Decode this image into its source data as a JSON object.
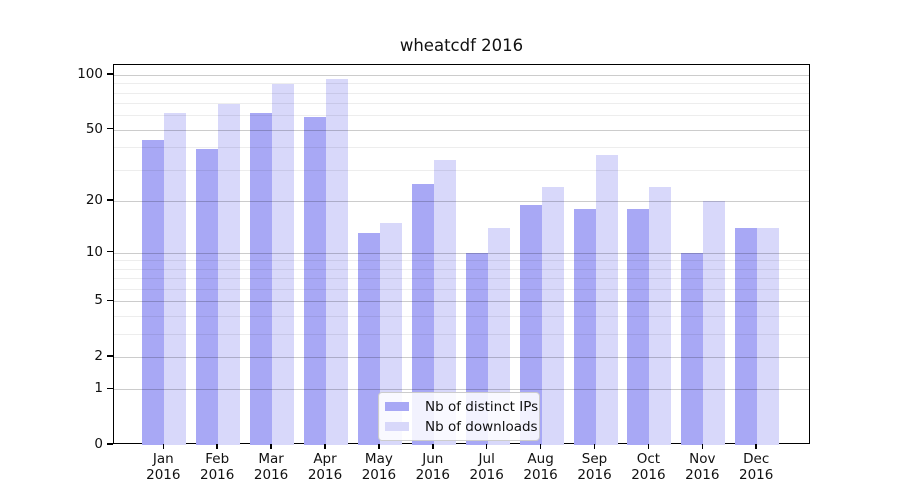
{
  "chart_data": {
    "type": "bar",
    "title": "wheatcdf 2016",
    "x_tick_months": [
      "Jan",
      "Feb",
      "Mar",
      "Apr",
      "May",
      "Jun",
      "Jul",
      "Aug",
      "Sep",
      "Oct",
      "Nov",
      "Dec"
    ],
    "x_tick_year": "2016",
    "series": [
      {
        "name": "Nb of distinct IPs",
        "color": "#a8a8f5",
        "values": [
          44,
          39,
          62,
          59,
          13,
          25,
          10,
          19,
          18,
          18,
          10,
          14
        ]
      },
      {
        "name": "Nb of downloads",
        "color": "#d8d8fa",
        "values": [
          62,
          69,
          89,
          95,
          15,
          34,
          14,
          24,
          36,
          24,
          20,
          14
        ]
      }
    ],
    "yscale": "symlog-log1p",
    "y_major_ticks": [
      0,
      1,
      2,
      5,
      10,
      20,
      50,
      100
    ],
    "y_minor_gridlines": [
      3,
      4,
      6,
      7,
      8,
      9,
      30,
      40,
      60,
      70,
      80,
      90
    ],
    "ylim": [
      0,
      113
    ],
    "xlabel": "",
    "ylabel": "",
    "grid": true,
    "legend_position": "lower center"
  }
}
